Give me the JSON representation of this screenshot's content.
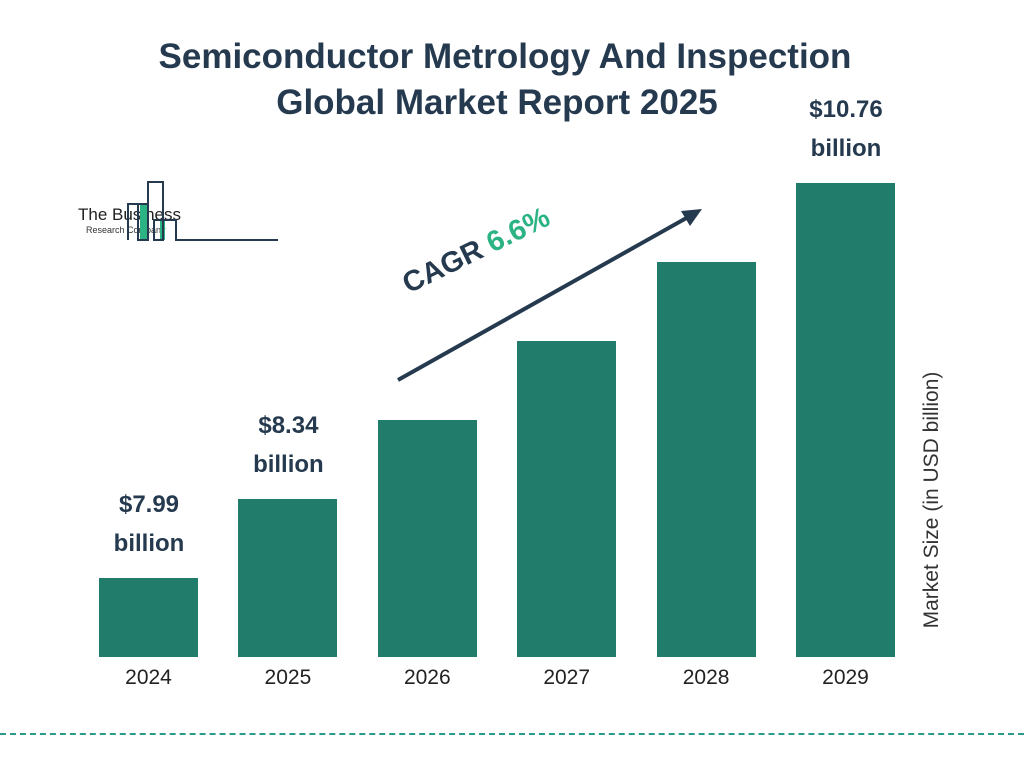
{
  "chart_data": {
    "type": "bar",
    "title": [
      "Semiconductor Metrology And Inspection",
      "Global Market Report 2025"
    ],
    "categories": [
      "2024",
      "2025",
      "2026",
      "2027",
      "2028",
      "2029"
    ],
    "values": [
      7.99,
      8.34,
      8.89,
      9.48,
      10.1,
      10.76
    ],
    "data_labels": [
      [
        "$7.99",
        "billion"
      ],
      [
        "$8.34",
        "billion"
      ],
      null,
      null,
      null,
      [
        "$10.76",
        "billion"
      ]
    ],
    "ylabel": "Market Size (in USD billion)",
    "annotation": {
      "label": "CAGR",
      "value": "6.6%"
    },
    "bar_color": "#217c6c",
    "grid": false
  },
  "logo": {
    "line1": "The Business",
    "line2": "Research Company"
  }
}
